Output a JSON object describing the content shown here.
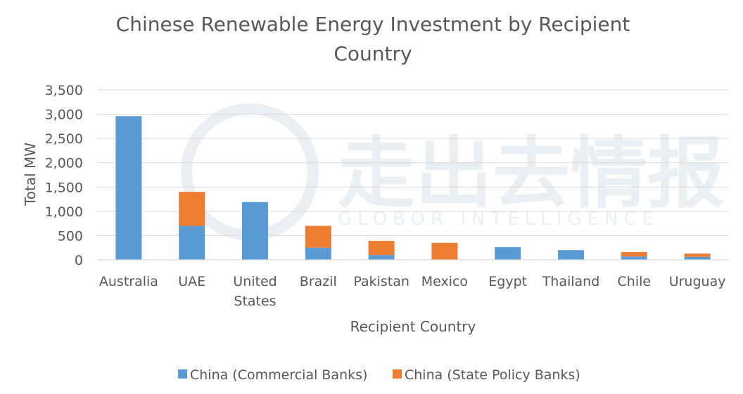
{
  "chart_data": {
    "type": "bar",
    "stacked": true,
    "title_line1": "Chinese Renewable Energy Investment by Recipient",
    "title_line2": "Country",
    "xlabel": "Recipient Country",
    "ylabel": "Total MW",
    "ylim": [
      0,
      3500
    ],
    "yticks": [
      "3,500",
      "3,000",
      "2,500",
      "2,000",
      "1,500",
      "1,000",
      "500",
      "0"
    ],
    "ytick_values": [
      3500,
      3000,
      2500,
      2000,
      1500,
      1000,
      500,
      0
    ],
    "categories": [
      "Australia",
      "UAE",
      "United States",
      "Brazil",
      "Pakistan",
      "Mexico",
      "Egypt",
      "Thailand",
      "Chile",
      "Uruguay"
    ],
    "category_lines": [
      [
        "Australia"
      ],
      [
        "UAE"
      ],
      [
        "United",
        "States"
      ],
      [
        "Brazil"
      ],
      [
        "Pakistan"
      ],
      [
        "Mexico"
      ],
      [
        "Egypt"
      ],
      [
        "Thailand"
      ],
      [
        "Chile"
      ],
      [
        "Uruguay"
      ]
    ],
    "series": [
      {
        "name": "China (Commercial Banks)",
        "color": "#5b9bd5",
        "values": [
          2960,
          700,
          1190,
          250,
          100,
          0,
          260,
          200,
          70,
          60
        ]
      },
      {
        "name": "China (State Policy Banks)",
        "color": "#ed7d31",
        "values": [
          0,
          700,
          0,
          450,
          290,
          350,
          0,
          0,
          90,
          70
        ]
      }
    ],
    "grid": true,
    "legend_position": "bottom"
  },
  "watermark": {
    "cn": "走出去情报",
    "en": "GLOBOR INTELLIGENCE"
  }
}
